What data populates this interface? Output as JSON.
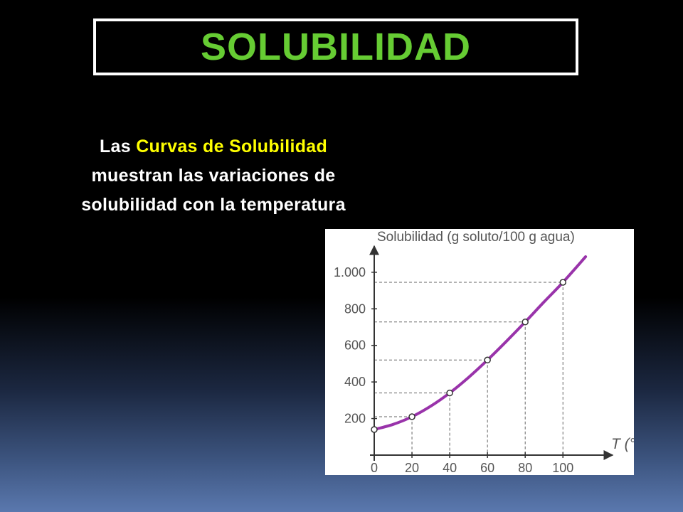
{
  "slide": {
    "title": "SOLUBILIDAD",
    "title_color": "#66cc33",
    "description": {
      "part1": "Las ",
      "highlight": "Curvas de Solubilidad",
      "part2": " muestran las variaciones de solubilidad con la temperatura",
      "highlight_color": "#ffff00"
    }
  },
  "chart_data": {
    "type": "line",
    "ylabel": "Solubilidad (g soluto/100 g agua)",
    "xlabel": "T (°",
    "x_ticks": [
      "0",
      "20",
      "40",
      "60",
      "80",
      "100"
    ],
    "y_ticks": [
      "200",
      "400",
      "600",
      "800",
      "1.000"
    ],
    "xlim": [
      0,
      118
    ],
    "ylim": [
      0,
      1120
    ],
    "series": [
      {
        "color": "#9933aa",
        "curve_x": [
          0,
          10,
          20,
          30,
          40,
          50,
          60,
          70,
          80,
          90,
          100,
          112
        ],
        "curve_y": [
          140,
          168,
          210,
          268,
          340,
          425,
          520,
          622,
          728,
          838,
          945,
          1085
        ],
        "marked_points": [
          {
            "x": 0,
            "y": 140
          },
          {
            "x": 20,
            "y": 210
          },
          {
            "x": 40,
            "y": 340
          },
          {
            "x": 60,
            "y": 520
          },
          {
            "x": 80,
            "y": 728
          },
          {
            "x": 100,
            "y": 945
          }
        ]
      }
    ],
    "grid": false,
    "dashed_guides": true
  }
}
